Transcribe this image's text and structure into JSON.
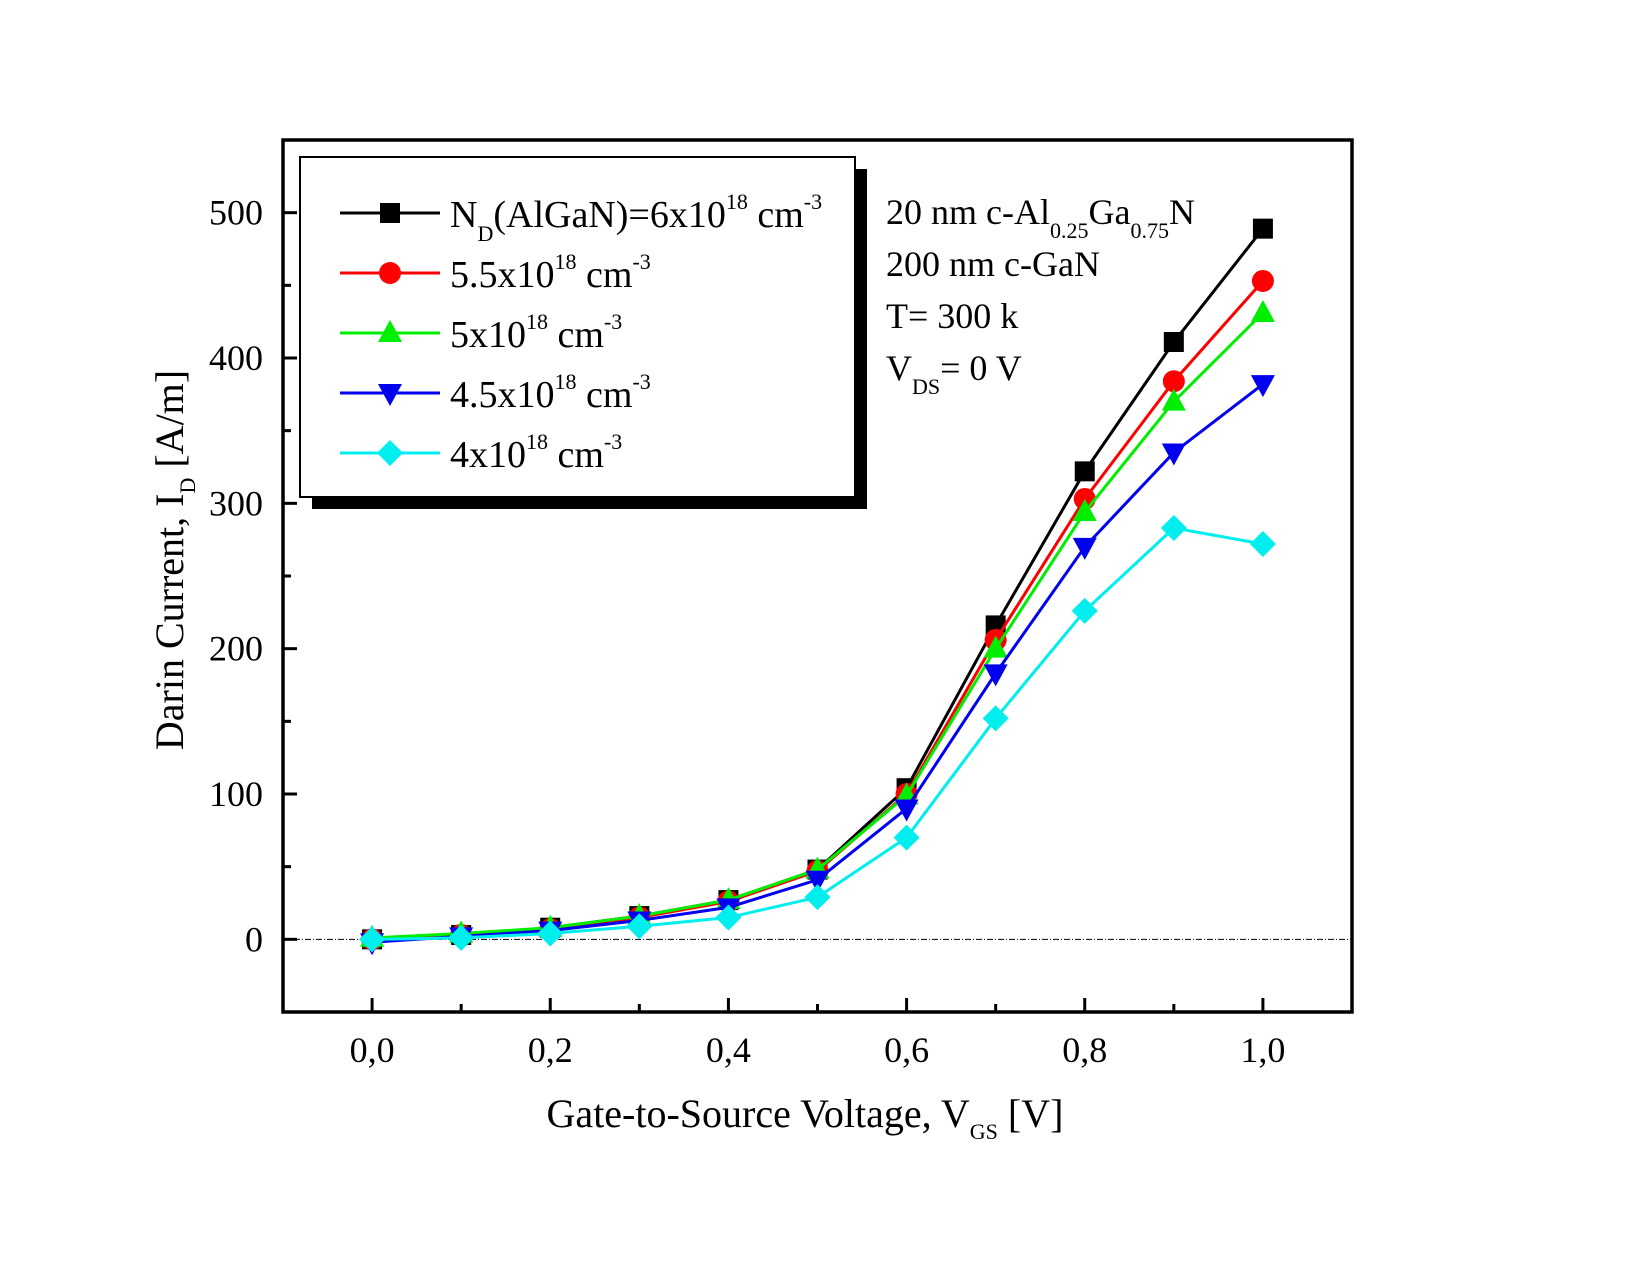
{
  "chart_data": {
    "type": "line",
    "title": "",
    "xlabel": "Gate-to-Source Voltage, V",
    "xlabel_sub": "GS",
    "xlabel_suffix": " [V]",
    "ylabel": "Darin Current, I",
    "ylabel_sub": "D",
    "ylabel_suffix": " [A/m]",
    "xlim": [
      -0.1,
      1.1
    ],
    "ylim": [
      -50,
      550
    ],
    "x_ticks": [
      0.0,
      0.2,
      0.4,
      0.6,
      0.8,
      1.0
    ],
    "x_tick_labels": [
      "0,0",
      "0,2",
      "0,4",
      "0,6",
      "0,8",
      "1,0"
    ],
    "x_minor_ticks": [
      0.1,
      0.3,
      0.5,
      0.7,
      0.9
    ],
    "y_ticks": [
      0,
      100,
      200,
      300,
      400,
      500
    ],
    "y_tick_labels": [
      "0",
      "100",
      "200",
      "300",
      "400",
      "500"
    ],
    "y_minor_ticks": [
      50,
      150,
      250,
      350,
      450
    ],
    "grid": false,
    "zero_reference_line": true,
    "legend_position": "top-left",
    "x": [
      0.0,
      0.1,
      0.2,
      0.3,
      0.4,
      0.5,
      0.6,
      0.7,
      0.8,
      0.9,
      1.0
    ],
    "series": [
      {
        "name": "N_D(AlGaN)=6x10^18 cm^-3",
        "label_main": "N",
        "label_sub": "D",
        "label_mid": "(AlGaN)=6x10",
        "label_sup1": "18",
        "label_unit": " cm",
        "label_sup2": "-3",
        "color": "#000000",
        "marker": "square",
        "values": [
          0,
          3,
          8,
          16,
          27,
          48,
          104,
          216,
          322,
          411,
          489
        ]
      },
      {
        "name": "5.5x10^18 cm^-3",
        "label_main": "",
        "label_sub": "",
        "label_mid": "5.5x10",
        "label_sup1": "18",
        "label_unit": " cm",
        "label_sup2": "-3",
        "color": "#ff0000",
        "marker": "circle",
        "values": [
          0,
          3,
          7,
          15,
          26,
          47,
          100,
          206,
          303,
          384,
          453
        ]
      },
      {
        "name": "5x10^18 cm^-3",
        "label_main": "",
        "label_sub": "",
        "label_mid": "5x10",
        "label_sup1": "18",
        "label_unit": " cm",
        "label_sup2": "-3",
        "color": "#00ee00",
        "marker": "triangle-up",
        "values": [
          1,
          4,
          8,
          16,
          27,
          48,
          99,
          200,
          294,
          370,
          431
        ]
      },
      {
        "name": "4.5x10^18 cm^-3",
        "label_main": "",
        "label_sub": "",
        "label_mid": "4.5x10",
        "label_sup1": "18",
        "label_unit": " cm",
        "label_sup2": "-3",
        "color": "#0000ee",
        "marker": "triangle-down",
        "values": [
          -2,
          2,
          6,
          13,
          22,
          41,
          90,
          183,
          270,
          335,
          382
        ]
      },
      {
        "name": "4x10^18 cm^-3",
        "label_main": "",
        "label_sub": "",
        "label_mid": "4x10",
        "label_sup1": "18",
        "label_unit": " cm",
        "label_sup2": "-3",
        "color": "#00eeee",
        "marker": "diamond",
        "values": [
          0,
          1,
          4,
          9,
          15,
          29,
          70,
          152,
          226,
          283,
          272
        ]
      }
    ],
    "annotations": [
      {
        "parts": [
          [
            "20 nm c-Al",
            ""
          ],
          [
            "0.25",
            "sub"
          ],
          [
            "Ga",
            ""
          ],
          [
            "0.75",
            "sub"
          ],
          [
            "N",
            ""
          ]
        ]
      },
      {
        "parts": [
          [
            "200 nm c-GaN",
            ""
          ]
        ]
      },
      {
        "parts": [
          [
            "T= 300 k",
            ""
          ]
        ]
      },
      {
        "parts": [
          [
            "V",
            ""
          ],
          [
            "DS",
            "sub"
          ],
          [
            "= 0 V",
            ""
          ]
        ]
      }
    ]
  }
}
